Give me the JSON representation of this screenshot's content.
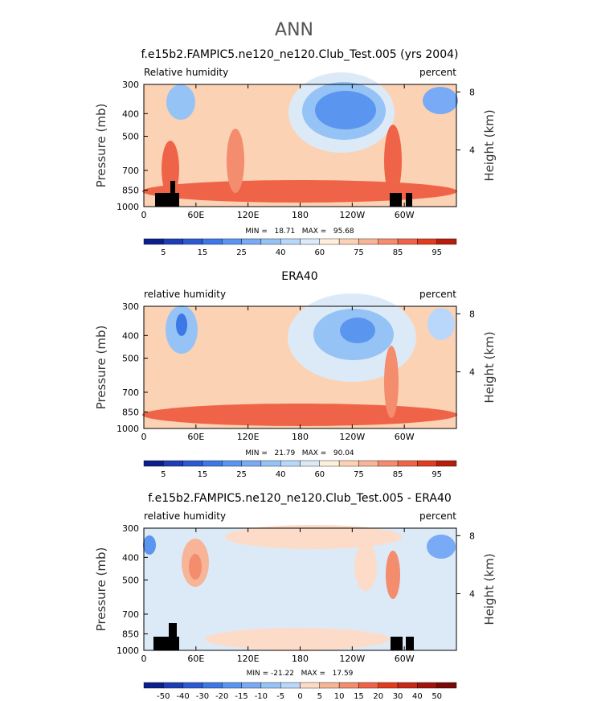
{
  "figure": {
    "season": "ANN"
  },
  "chart_data": [
    {
      "type": "heatmap",
      "title": "f.e15b2.FAMPIC5.ne120_ne120.Club_Test.005 (yrs 2004)",
      "left_label": "Relative humidity",
      "right_label": "percent",
      "ylabel": "Pressure (mb)",
      "ylabel_right": "Height (km)",
      "y_ticks": [
        "300",
        "400",
        "500",
        "700",
        "850",
        "1000"
      ],
      "y_tick_values": [
        300,
        400,
        500,
        700,
        850,
        1000
      ],
      "y_right_ticks": [
        "8",
        "4"
      ],
      "y_right_tick_values": [
        8,
        4
      ],
      "x_ticks": [
        "0",
        "60E",
        "120E",
        "180",
        "120W",
        "60W"
      ],
      "x_tick_values": [
        0,
        60,
        120,
        180,
        240,
        300
      ],
      "xlim": [
        0,
        360
      ],
      "stats": "MIN =   18.71   MAX =   95.68",
      "min": 18.71,
      "max": 95.68,
      "levels": [
        5,
        10,
        15,
        20,
        25,
        30,
        40,
        50,
        60,
        70,
        75,
        80,
        85,
        90,
        95
      ],
      "colorbar_labels": [
        "5",
        "15",
        "25",
        "40",
        "60",
        "75",
        "85",
        "95"
      ],
      "colors": [
        "#0a1e8c",
        "#1e3cb4",
        "#2d5ad2",
        "#3c78e6",
        "#5a96f0",
        "#78aaf5",
        "#96c3f5",
        "#b9d7fa",
        "#dceaf8",
        "#fff0dc",
        "#fcd2b4",
        "#f7b496",
        "#f48c6e",
        "#ef6448",
        "#e13c1e",
        "#b41e0a"
      ]
    },
    {
      "type": "heatmap",
      "title": "ERA40",
      "left_label": "relative humidity",
      "right_label": "percent",
      "ylabel": "Pressure (mb)",
      "ylabel_right": "Height (km)",
      "y_ticks": [
        "300",
        "400",
        "500",
        "700",
        "850",
        "1000"
      ],
      "y_tick_values": [
        300,
        400,
        500,
        700,
        850,
        1000
      ],
      "y_right_ticks": [
        "8",
        "4"
      ],
      "y_right_tick_values": [
        8,
        4
      ],
      "x_ticks": [
        "0",
        "60E",
        "120E",
        "180",
        "120W",
        "60W"
      ],
      "x_tick_values": [
        0,
        60,
        120,
        180,
        240,
        300
      ],
      "xlim": [
        0,
        360
      ],
      "stats": "MIN =   21.79   MAX =   90.04",
      "min": 21.79,
      "max": 90.04,
      "levels": [
        5,
        10,
        15,
        20,
        25,
        30,
        40,
        50,
        60,
        70,
        75,
        80,
        85,
        90,
        95
      ],
      "colorbar_labels": [
        "5",
        "15",
        "25",
        "40",
        "60",
        "75",
        "85",
        "95"
      ],
      "colors": [
        "#0a1e8c",
        "#1e3cb4",
        "#2d5ad2",
        "#3c78e6",
        "#5a96f0",
        "#78aaf5",
        "#96c3f5",
        "#b9d7fa",
        "#dceaf8",
        "#fff0dc",
        "#fcd2b4",
        "#f7b496",
        "#f48c6e",
        "#ef6448",
        "#e13c1e",
        "#b41e0a"
      ]
    },
    {
      "type": "heatmap",
      "title": "f.e15b2.FAMPIC5.ne120_ne120.Club_Test.005 - ERA40",
      "left_label": "relative humidity",
      "right_label": "percent",
      "ylabel": "Pressure (mb)",
      "ylabel_right": "Height (km)",
      "y_ticks": [
        "300",
        "400",
        "500",
        "700",
        "850",
        "1000"
      ],
      "y_tick_values": [
        300,
        400,
        500,
        700,
        850,
        1000
      ],
      "y_right_ticks": [
        "8",
        "4"
      ],
      "y_right_tick_values": [
        8,
        4
      ],
      "x_ticks": [
        "0",
        "60E",
        "120E",
        "180",
        "120W",
        "60W"
      ],
      "x_tick_values": [
        0,
        60,
        120,
        180,
        240,
        300
      ],
      "xlim": [
        0,
        360
      ],
      "stats": "MIN = -21.22   MAX =   17.59",
      "min": -21.22,
      "max": 17.59,
      "levels": [
        -50,
        -40,
        -30,
        -20,
        -15,
        -10,
        -5,
        0,
        5,
        10,
        15,
        20,
        30,
        40,
        50
      ],
      "colorbar_labels": [
        "-50",
        "-40",
        "-30",
        "-20",
        "-15",
        "-10",
        "-5",
        "0",
        "5",
        "10",
        "15",
        "20",
        "30",
        "40",
        "50"
      ],
      "colors": [
        "#0a1e8c",
        "#1e3cb4",
        "#2d5ad2",
        "#3c78e6",
        "#5a96f0",
        "#78aaf5",
        "#96c3f5",
        "#b9d7fa",
        "#fcdcc8",
        "#f7b496",
        "#f48c6e",
        "#ef6448",
        "#e13c1e",
        "#c8281a",
        "#a01410",
        "#780a0a"
      ]
    }
  ]
}
